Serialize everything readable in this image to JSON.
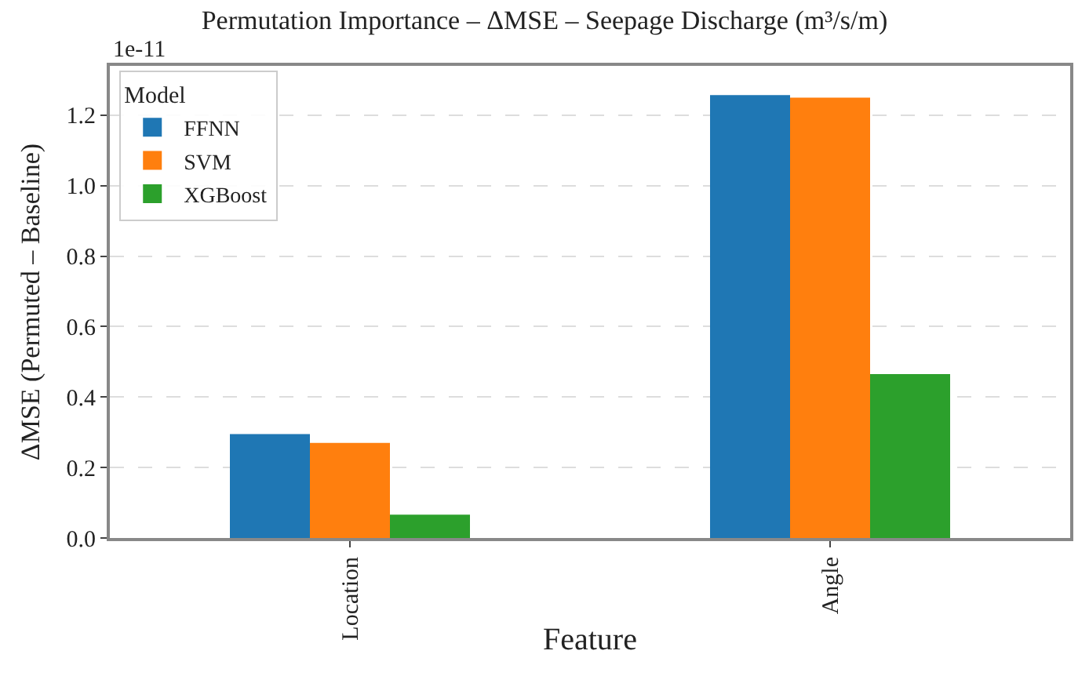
{
  "chart_data": {
    "type": "bar",
    "title": "Permutation Importance – ΔMSE – Seepage Discharge (m³/s/m)",
    "xlabel": "Feature",
    "ylabel": "ΔMSE (Permuted – Baseline)",
    "legend_title": "Model",
    "annotations": [
      "1e-11"
    ],
    "categories": [
      "Location",
      "Angle"
    ],
    "series": [
      {
        "name": "FFNN",
        "color": "#1f77b4",
        "values": [
          0.295,
          1.257
        ]
      },
      {
        "name": "SVM",
        "color": "#ff7f0e",
        "values": [
          0.27,
          1.25
        ]
      },
      {
        "name": "XGBoost",
        "color": "#2ca02c",
        "values": [
          0.066,
          0.465
        ]
      }
    ],
    "ylim": [
      0,
      1.34
    ],
    "yticks": [
      {
        "value": 0,
        "label": "0.0"
      },
      {
        "value": 0.2,
        "label": "0.2"
      },
      {
        "value": 0.4,
        "label": "0.4"
      },
      {
        "value": 0.6,
        "label": "0.6"
      },
      {
        "value": 0.8,
        "label": "0.8"
      },
      {
        "value": 1,
        "label": "1.0"
      },
      {
        "value": 1.2,
        "label": "1.2"
      }
    ],
    "grid": "y",
    "legend": "top left"
  }
}
